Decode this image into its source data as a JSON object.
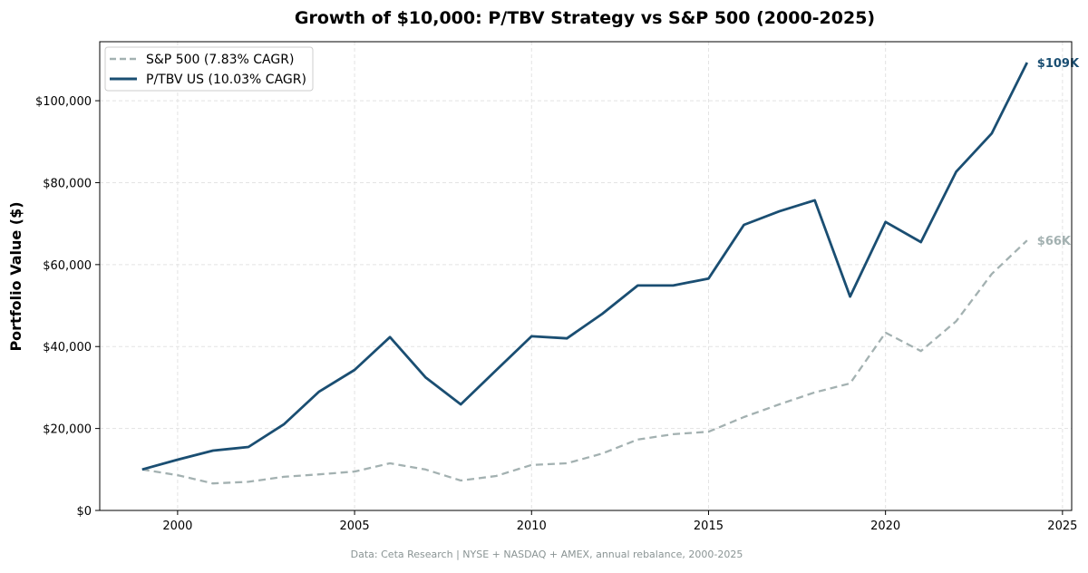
{
  "chart_data": {
    "type": "line",
    "title": "Growth of $10,000: P/TBV Strategy vs S&P 500 (2000-2025)",
    "xlabel": "",
    "ylabel": "Portfolio Value ($)",
    "footnote": "Data: Ceta Research | NYSE + NASDAQ + AMEX, annual rebalance, 2000-2025",
    "xlim": [
      1997.8,
      2025.26
    ],
    "ylim": [
      0,
      114400
    ],
    "x_ticks": [
      2000,
      2005,
      2010,
      2015,
      2020,
      2025
    ],
    "x_tick_labels": [
      "2000",
      "2005",
      "2010",
      "2015",
      "2020",
      "2025"
    ],
    "y_ticks": [
      0,
      20000,
      40000,
      60000,
      80000,
      100000
    ],
    "y_tick_labels": [
      "$0",
      "$20,000",
      "$40,000",
      "$60,000",
      "$80,000",
      "$100,000"
    ],
    "grid": true,
    "legend_position": "top-left",
    "x": [
      1999,
      2000,
      2001,
      2002,
      2003,
      2004,
      2005,
      2006,
      2007,
      2008,
      2009,
      2010,
      2011,
      2012,
      2013,
      2014,
      2015,
      2016,
      2017,
      2018,
      2019,
      2020,
      2021,
      2022,
      2023,
      2024
    ],
    "series": [
      {
        "name": "S&P 500 (7.83% CAGR)",
        "color": "#a3b1b1",
        "style": "dashed",
        "end_label": "$66K",
        "values": [
          10000,
          8600,
          6600,
          7000,
          8200,
          8800,
          9500,
          11500,
          10000,
          7300,
          8400,
          11100,
          11500,
          13900,
          17300,
          18600,
          19200,
          22800,
          25900,
          28800,
          31000,
          43400,
          38900,
          46200,
          57700,
          65900
        ]
      },
      {
        "name": "P/TBV US (10.03% CAGR)",
        "color": "#1a4e72",
        "style": "solid",
        "end_label": "$109K",
        "values": [
          10000,
          12400,
          14600,
          15500,
          21000,
          29000,
          34300,
          42300,
          32500,
          25900,
          34200,
          42500,
          42000,
          48000,
          54900,
          54900,
          56600,
          69700,
          73000,
          75700,
          52200,
          70400,
          65500,
          82700,
          92000,
          109300
        ]
      }
    ]
  }
}
